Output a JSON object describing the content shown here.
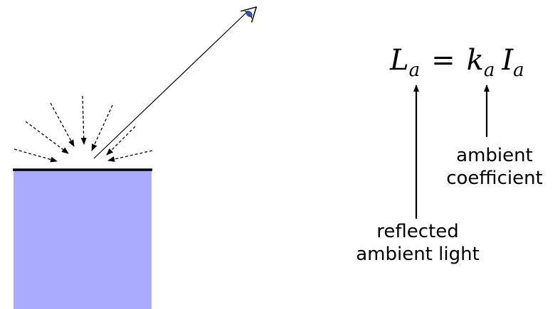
{
  "equation": {
    "lhs_symbol": "L",
    "lhs_subscript": "a",
    "operator": "=",
    "coef_symbol": "k",
    "coef_subscript": "a",
    "intensity_symbol": "I",
    "intensity_subscript": "a"
  },
  "labels": {
    "ambient_coefficient": [
      "ambient",
      "coefficient"
    ],
    "reflected_ambient_light": [
      "reflected",
      "ambient light"
    ]
  },
  "colors": {
    "surface_fill": "#aaaaff",
    "surface_line": "#000000",
    "eye_iris": "#3355cc"
  },
  "icons": {
    "eye": "eye-icon"
  }
}
